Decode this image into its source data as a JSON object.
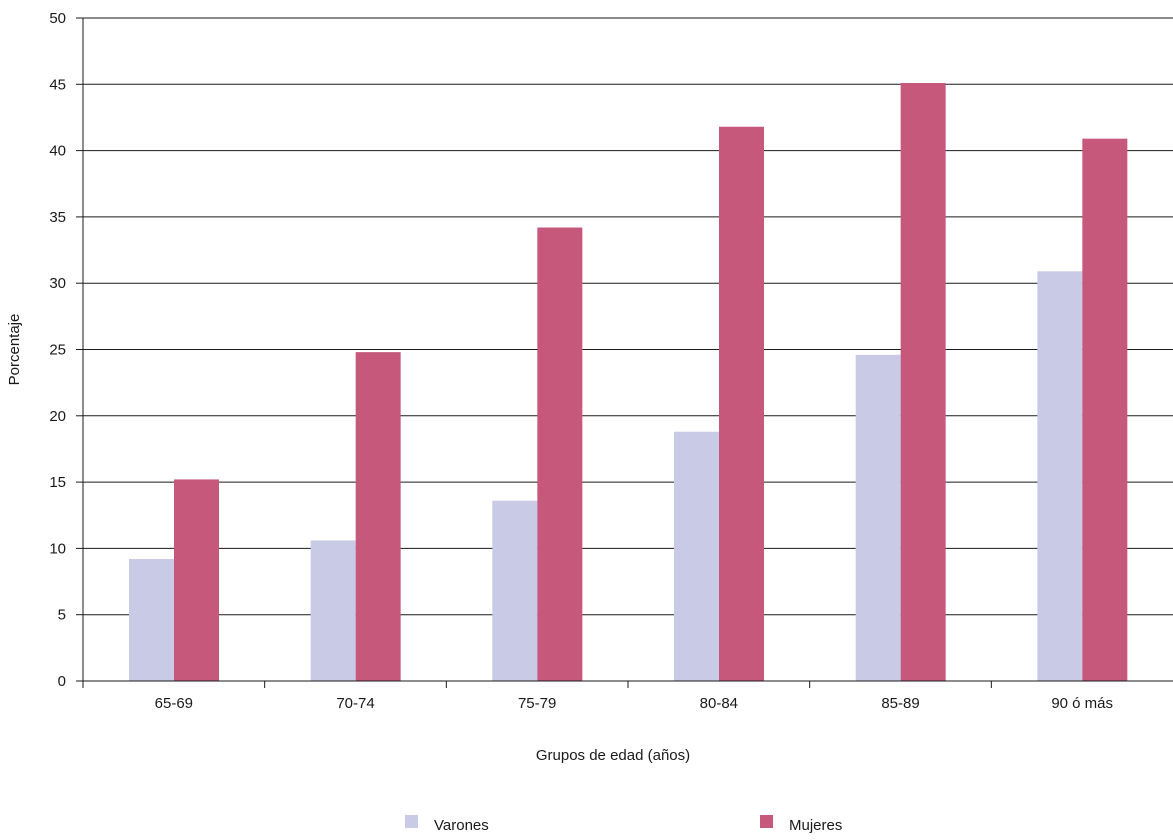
{
  "chart_data": {
    "type": "bar",
    "title": "",
    "xlabel": "Grupos de edad (años)",
    "ylabel": "Porcentaje",
    "ylim": [
      0,
      50
    ],
    "yticks": [
      0,
      5,
      10,
      15,
      20,
      25,
      30,
      35,
      40,
      45,
      50
    ],
    "grid": true,
    "legend_position": "bottom",
    "categories": [
      "65-69",
      "70-74",
      "75-79",
      "80-84",
      "85-89",
      "90 ó más"
    ],
    "series": [
      {
        "name": "Varones",
        "color": "#c8cae6",
        "values": [
          9.2,
          10.6,
          13.6,
          18.8,
          24.6,
          30.9
        ]
      },
      {
        "name": "Mujeres",
        "color": "#c6587c",
        "values": [
          15.2,
          24.8,
          34.2,
          41.8,
          45.1,
          40.9
        ]
      }
    ]
  }
}
